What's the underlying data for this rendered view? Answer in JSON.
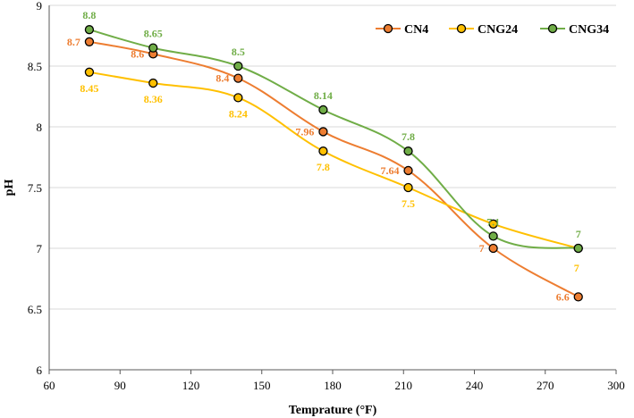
{
  "chart_data": {
    "type": "line",
    "xlabel": "Temprature (°F)",
    "ylabel": "pH",
    "xlim": [
      60,
      300
    ],
    "ylim": [
      6,
      9
    ],
    "xticks": [
      60,
      90,
      120,
      150,
      180,
      210,
      240,
      270,
      300
    ],
    "yticks": [
      6,
      6.5,
      7,
      7.5,
      8,
      8.5,
      9
    ],
    "ytick_labels": [
      "6",
      "6.5",
      "7",
      "7.5",
      "8",
      "8.5",
      "9"
    ],
    "grid": "horizontal",
    "legend_position": "top-right",
    "x": [
      77,
      104,
      140,
      176,
      212,
      248,
      284
    ],
    "series": [
      {
        "name": "CN4",
        "color": "#ED7D31",
        "values": [
          8.7,
          8.6,
          8.4,
          7.96,
          7.64,
          7,
          6.6
        ],
        "labels": [
          "8.7",
          "8.6",
          "8.4",
          "7.96",
          "7.64",
          "7",
          "6.6"
        ]
      },
      {
        "name": "CNG24",
        "color": "#FFC000",
        "values": [
          8.45,
          8.36,
          8.24,
          7.8,
          7.5,
          7.2,
          7
        ],
        "labels": [
          "8.45",
          "8.36",
          "8.24",
          "7.8",
          "7.5",
          "",
          "7"
        ]
      },
      {
        "name": "CNG34",
        "color": "#70AD47",
        "values": [
          8.8,
          8.65,
          8.5,
          8.14,
          7.8,
          7.1,
          7
        ],
        "labels": [
          "8.8",
          "8.65",
          "8.5",
          "8.14",
          "7.8",
          "7.1",
          "7"
        ]
      }
    ]
  }
}
